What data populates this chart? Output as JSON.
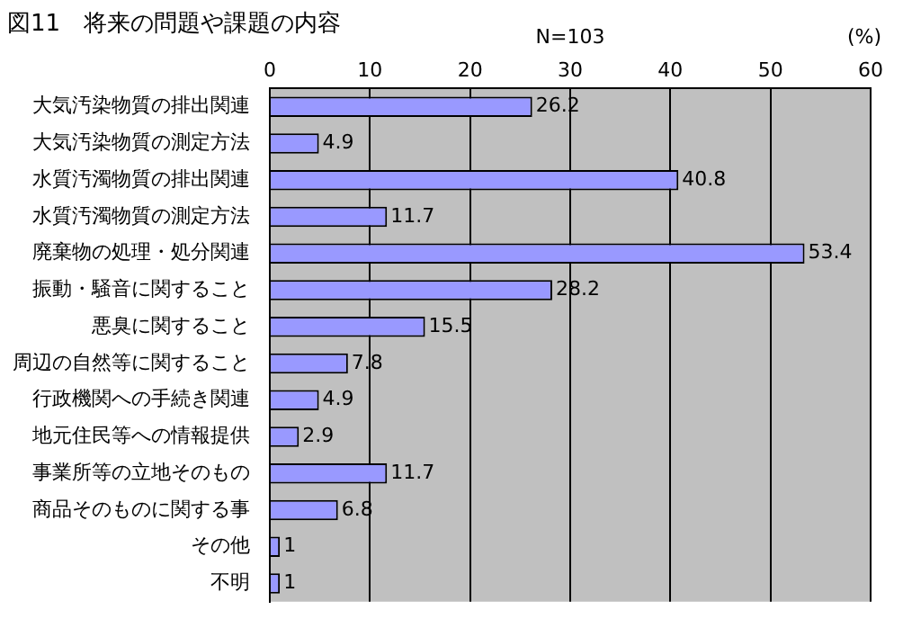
{
  "chart_data": {
    "type": "bar",
    "orientation": "horizontal",
    "title": "図11　将来の問題や課題の内容",
    "xlabel": "(%)",
    "annotations": [
      "N=103"
    ],
    "categories": [
      "大気汚染物質の排出関連",
      "大気汚染物質の測定方法",
      "水質汚濁物質の排出関連",
      "水質汚濁物質の測定方法",
      "廃棄物の処理・処分関連",
      "振動・騒音に関すること",
      "悪臭に関すること",
      "周辺の自然等に関すること",
      "行政機関への手続き関連",
      "地元住民等への情報提供",
      "事業所等の立地そのもの",
      "商品そのものに関する事",
      "その他",
      "不明"
    ],
    "values": [
      26.2,
      4.9,
      40.8,
      11.7,
      53.4,
      28.2,
      15.5,
      7.8,
      4.9,
      2.9,
      11.7,
      6.8,
      1,
      1
    ],
    "color": "#9999ff",
    "xlim": [
      0,
      60
    ],
    "xticks": [
      0,
      10,
      20,
      30,
      40,
      50,
      60
    ],
    "grid": "x",
    "data_labels": true,
    "legend": false
  }
}
